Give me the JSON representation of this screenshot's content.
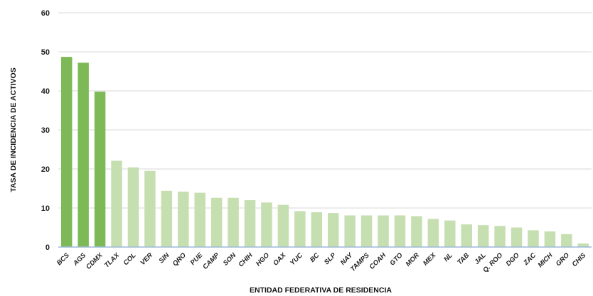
{
  "chart_data": {
    "type": "bar",
    "title": "",
    "xlabel": "ENTIDAD FEDERATIVA DE RESIDENCIA",
    "ylabel": "TASA DE INCIDENCIA DE ACTIVOS",
    "ylim": [
      0,
      60
    ],
    "yticks": [
      0,
      10,
      20,
      30,
      40,
      50,
      60
    ],
    "grid": true,
    "legend": "none",
    "colors": {
      "highlight": "#7dba57",
      "default": "#c6dfb1",
      "axis": "#9db9d8",
      "grid": "#d9d9d9"
    },
    "categories": [
      "BCS",
      "AGS",
      "CDMX",
      "TLAX",
      "COL",
      "VER",
      "SIN",
      "QRO",
      "PUE",
      "CAMP",
      "SON",
      "CHIH",
      "HGO",
      "OAX",
      "YUC",
      "BC",
      "SLP",
      "NAY",
      "TAMPS",
      "COAH",
      "GTO",
      "MOR",
      "MEX",
      "NL",
      "TAB",
      "JAL",
      "Q. ROO",
      "DGO",
      "ZAC",
      "MICH",
      "GRO",
      "CHIS"
    ],
    "values": [
      48.7,
      47.2,
      39.8,
      22.1,
      20.4,
      19.5,
      14.4,
      14.2,
      13.9,
      12.6,
      12.6,
      12.0,
      11.4,
      10.8,
      9.2,
      8.9,
      8.7,
      8.1,
      8.1,
      8.1,
      8.1,
      7.9,
      7.2,
      6.8,
      5.8,
      5.6,
      5.4,
      5.0,
      4.3,
      4.0,
      3.3,
      0.9
    ],
    "highlighted_count": 3
  }
}
